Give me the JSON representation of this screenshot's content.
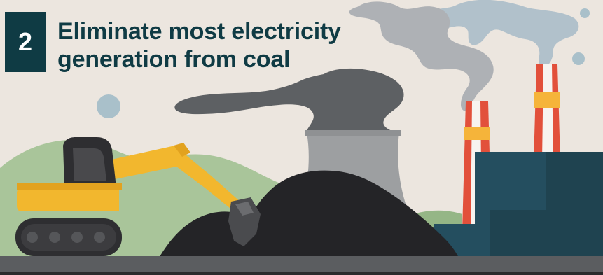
{
  "step": {
    "number": "2",
    "title_line_1": "Eliminate most electricity",
    "title_line_2": "generation from coal"
  },
  "colors": {
    "background": "#ece6df",
    "title_text": "#0f3b44",
    "badge_background": "#0f3b44",
    "hill": "#a9c59a",
    "excavator_body": "#f2b72e",
    "excavator_dark": "#2e2e31",
    "coal": "#242427",
    "cooling_tower": "#9d9fa1",
    "smoke_dark": "#5d6063",
    "smoke_light": "#aeb1b5",
    "smoke_blue": "#b1c1cb",
    "chimney_red": "#e2503b",
    "chimney_white": "#f7f3ef",
    "chimney_band": "#f5b43a",
    "factory": "#244e5f",
    "factory_dark": "#1f4350",
    "ground": "#5b5d60",
    "ground_edge": "#2a2a2c",
    "bubble": "#a9c0ca"
  },
  "icons": [
    "excavator-icon",
    "coal-pile-icon",
    "cooling-tower-icon",
    "factory-icon",
    "chimney-icon",
    "smoke-icon"
  ]
}
